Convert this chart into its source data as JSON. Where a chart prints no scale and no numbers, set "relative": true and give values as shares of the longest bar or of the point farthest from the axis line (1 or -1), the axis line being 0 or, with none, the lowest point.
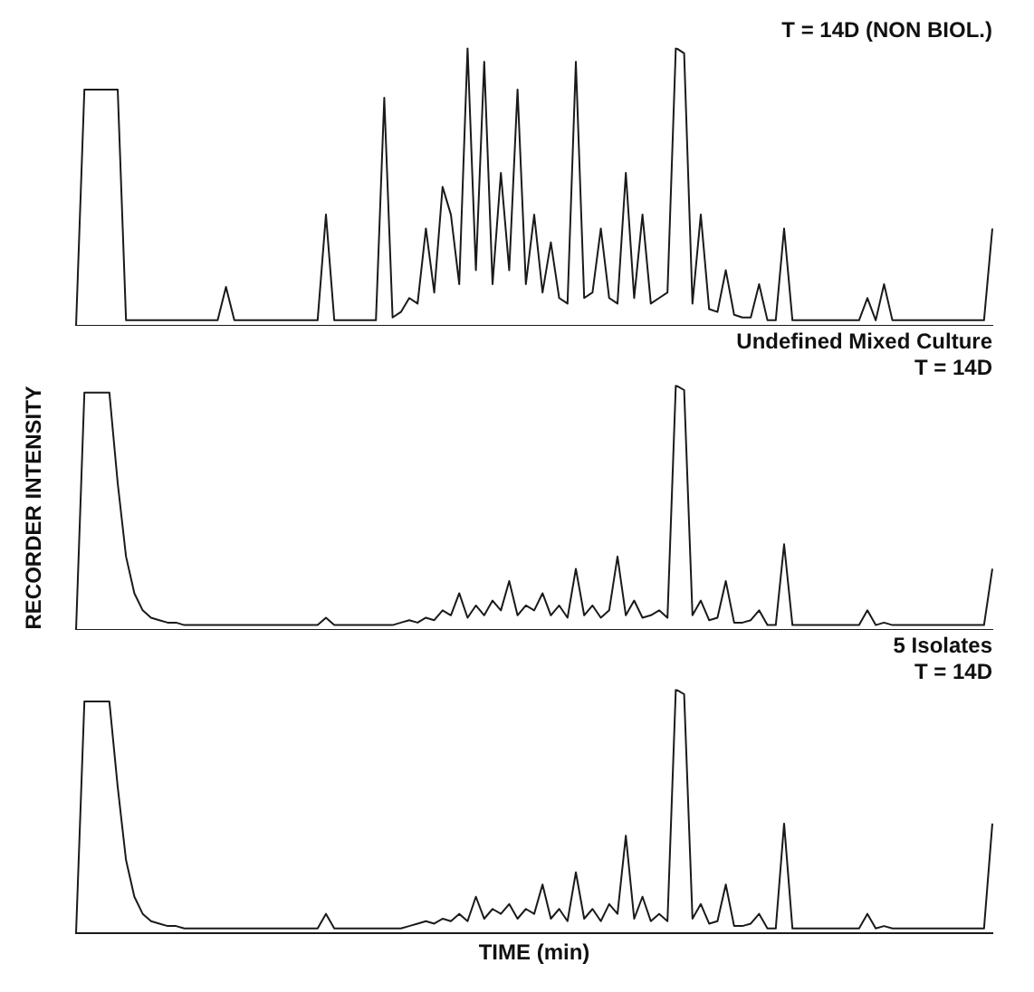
{
  "chart_data": [
    {
      "type": "line",
      "title": "T = 14D (NON BIOL.)",
      "relative": true,
      "legend": false,
      "marker": "none",
      "color": "#1a1a1a",
      "categories": [
        null,
        null,
        null,
        null,
        null,
        null,
        null,
        null,
        null,
        null,
        null,
        null,
        null,
        null,
        null,
        null,
        null,
        null,
        null,
        null,
        null,
        null,
        null,
        null,
        null,
        null,
        null,
        null,
        null,
        null,
        null,
        null,
        null,
        null,
        null,
        null,
        null,
        null,
        null,
        null,
        null,
        null,
        null,
        null,
        null,
        null,
        null,
        null,
        null,
        null,
        null,
        null,
        null,
        null,
        null,
        null,
        null,
        null,
        null,
        null,
        null,
        null,
        null,
        null,
        null,
        null,
        null,
        null,
        null,
        null,
        null,
        null,
        null,
        null,
        null,
        null,
        null,
        null,
        null,
        null,
        null,
        null,
        null,
        null,
        null,
        null,
        null,
        null,
        null,
        null,
        null,
        null,
        null,
        null,
        null,
        null,
        null,
        null,
        null,
        null,
        null,
        null,
        null,
        null,
        null,
        null,
        null,
        null,
        null,
        null,
        null
      ],
      "values": [
        0,
        0.85,
        0.85,
        0.85,
        0.85,
        0.85,
        0.02,
        0.02,
        0.02,
        0.02,
        0.02,
        0.02,
        0.02,
        0.02,
        0.02,
        0.02,
        0.02,
        0.02,
        0.14,
        0.02,
        0.02,
        0.02,
        0.02,
        0.02,
        0.02,
        0.02,
        0.02,
        0.02,
        0.02,
        0.02,
        0.4,
        0.02,
        0.02,
        0.02,
        0.02,
        0.02,
        0.02,
        0.82,
        0.03,
        0.05,
        0.1,
        0.08,
        0.35,
        0.12,
        0.5,
        0.4,
        0.15,
        1,
        0.2,
        0.95,
        0.15,
        0.55,
        0.2,
        0.85,
        0.15,
        0.4,
        0.12,
        0.3,
        0.1,
        0.08,
        0.95,
        0.1,
        0.12,
        0.35,
        0.1,
        0.08,
        0.55,
        0.1,
        0.4,
        0.08,
        0.1,
        0.12,
        1,
        0.98,
        0.08,
        0.4,
        0.06,
        0.05,
        0.2,
        0.04,
        0.03,
        0.03,
        0.15,
        0.02,
        0.02,
        0.35,
        0.02,
        0.02,
        0.02,
        0.02,
        0.02,
        0.02,
        0.02,
        0.02,
        0.02,
        0.1,
        0.02,
        0.15,
        0.02,
        0.02,
        0.02,
        0.02,
        0.02,
        0.02,
        0.02,
        0.02,
        0.02,
        0.02,
        0.02,
        0.02,
        0.35
      ]
    },
    {
      "type": "line",
      "title": "Undefined Mixed Culture\nT = 14D",
      "ylabel": "RECORDER INTENSITY",
      "relative": true,
      "legend": false,
      "marker": "none",
      "color": "#1a1a1a",
      "categories": [
        null,
        null,
        null,
        null,
        null,
        null,
        null,
        null,
        null,
        null,
        null,
        null,
        null,
        null,
        null,
        null,
        null,
        null,
        null,
        null,
        null,
        null,
        null,
        null,
        null,
        null,
        null,
        null,
        null,
        null,
        null,
        null,
        null,
        null,
        null,
        null,
        null,
        null,
        null,
        null,
        null,
        null,
        null,
        null,
        null,
        null,
        null,
        null,
        null,
        null,
        null,
        null,
        null,
        null,
        null,
        null,
        null,
        null,
        null,
        null,
        null,
        null,
        null,
        null,
        null,
        null,
        null,
        null,
        null,
        null,
        null,
        null,
        null,
        null,
        null,
        null,
        null,
        null,
        null,
        null,
        null,
        null,
        null,
        null,
        null,
        null,
        null,
        null,
        null,
        null,
        null,
        null,
        null,
        null,
        null,
        null,
        null,
        null,
        null,
        null,
        null,
        null,
        null,
        null,
        null,
        null,
        null,
        null,
        null,
        null,
        null
      ],
      "values": [
        0,
        0.97,
        0.97,
        0.97,
        0.97,
        0.6,
        0.3,
        0.15,
        0.08,
        0.05,
        0.04,
        0.03,
        0.03,
        0.02,
        0.02,
        0.02,
        0.02,
        0.02,
        0.02,
        0.02,
        0.02,
        0.02,
        0.02,
        0.02,
        0.02,
        0.02,
        0.02,
        0.02,
        0.02,
        0.02,
        0.05,
        0.02,
        0.02,
        0.02,
        0.02,
        0.02,
        0.02,
        0.02,
        0.02,
        0.03,
        0.04,
        0.03,
        0.05,
        0.04,
        0.08,
        0.06,
        0.15,
        0.05,
        0.1,
        0.06,
        0.12,
        0.08,
        0.2,
        0.06,
        0.1,
        0.08,
        0.15,
        0.06,
        0.1,
        0.05,
        0.25,
        0.06,
        0.1,
        0.05,
        0.08,
        0.3,
        0.06,
        0.12,
        0.05,
        0.06,
        0.08,
        0.05,
        1,
        0.98,
        0.06,
        0.12,
        0.04,
        0.05,
        0.2,
        0.03,
        0.03,
        0.04,
        0.08,
        0.02,
        0.02,
        0.35,
        0.02,
        0.02,
        0.02,
        0.02,
        0.02,
        0.02,
        0.02,
        0.02,
        0.02,
        0.08,
        0.02,
        0.03,
        0.02,
        0.02,
        0.02,
        0.02,
        0.02,
        0.02,
        0.02,
        0.02,
        0.02,
        0.02,
        0.02,
        0.02,
        0.25
      ]
    },
    {
      "type": "line",
      "title": "5 Isolates\nT = 14D",
      "xlabel": "TIME (min)",
      "relative": true,
      "legend": false,
      "marker": "none",
      "color": "#1a1a1a",
      "categories": [
        null,
        null,
        null,
        null,
        null,
        null,
        null,
        null,
        null,
        null,
        null,
        null,
        null,
        null,
        null,
        null,
        null,
        null,
        null,
        null,
        null,
        null,
        null,
        null,
        null,
        null,
        null,
        null,
        null,
        null,
        null,
        null,
        null,
        null,
        null,
        null,
        null,
        null,
        null,
        null,
        null,
        null,
        null,
        null,
        null,
        null,
        null,
        null,
        null,
        null,
        null,
        null,
        null,
        null,
        null,
        null,
        null,
        null,
        null,
        null,
        null,
        null,
        null,
        null,
        null,
        null,
        null,
        null,
        null,
        null,
        null,
        null,
        null,
        null,
        null,
        null,
        null,
        null,
        null,
        null,
        null,
        null,
        null,
        null,
        null,
        null,
        null,
        null,
        null,
        null,
        null,
        null,
        null,
        null,
        null,
        null,
        null,
        null,
        null,
        null,
        null,
        null,
        null,
        null,
        null,
        null,
        null,
        null,
        null,
        null,
        null
      ],
      "values": [
        0,
        0.95,
        0.95,
        0.95,
        0.95,
        0.6,
        0.3,
        0.15,
        0.08,
        0.05,
        0.04,
        0.03,
        0.03,
        0.02,
        0.02,
        0.02,
        0.02,
        0.02,
        0.02,
        0.02,
        0.02,
        0.02,
        0.02,
        0.02,
        0.02,
        0.02,
        0.02,
        0.02,
        0.02,
        0.02,
        0.08,
        0.02,
        0.02,
        0.02,
        0.02,
        0.02,
        0.02,
        0.02,
        0.02,
        0.02,
        0.03,
        0.04,
        0.05,
        0.04,
        0.06,
        0.05,
        0.08,
        0.05,
        0.15,
        0.06,
        0.1,
        0.08,
        0.12,
        0.06,
        0.1,
        0.08,
        0.2,
        0.06,
        0.1,
        0.05,
        0.25,
        0.06,
        0.1,
        0.05,
        0.12,
        0.08,
        0.4,
        0.06,
        0.15,
        0.05,
        0.08,
        0.05,
        1,
        0.98,
        0.06,
        0.12,
        0.04,
        0.05,
        0.2,
        0.03,
        0.03,
        0.04,
        0.08,
        0.02,
        0.02,
        0.45,
        0.02,
        0.02,
        0.02,
        0.02,
        0.02,
        0.02,
        0.02,
        0.02,
        0.02,
        0.08,
        0.02,
        0.03,
        0.02,
        0.02,
        0.02,
        0.02,
        0.02,
        0.02,
        0.02,
        0.02,
        0.02,
        0.02,
        0.02,
        0.02,
        0.45
      ]
    }
  ]
}
